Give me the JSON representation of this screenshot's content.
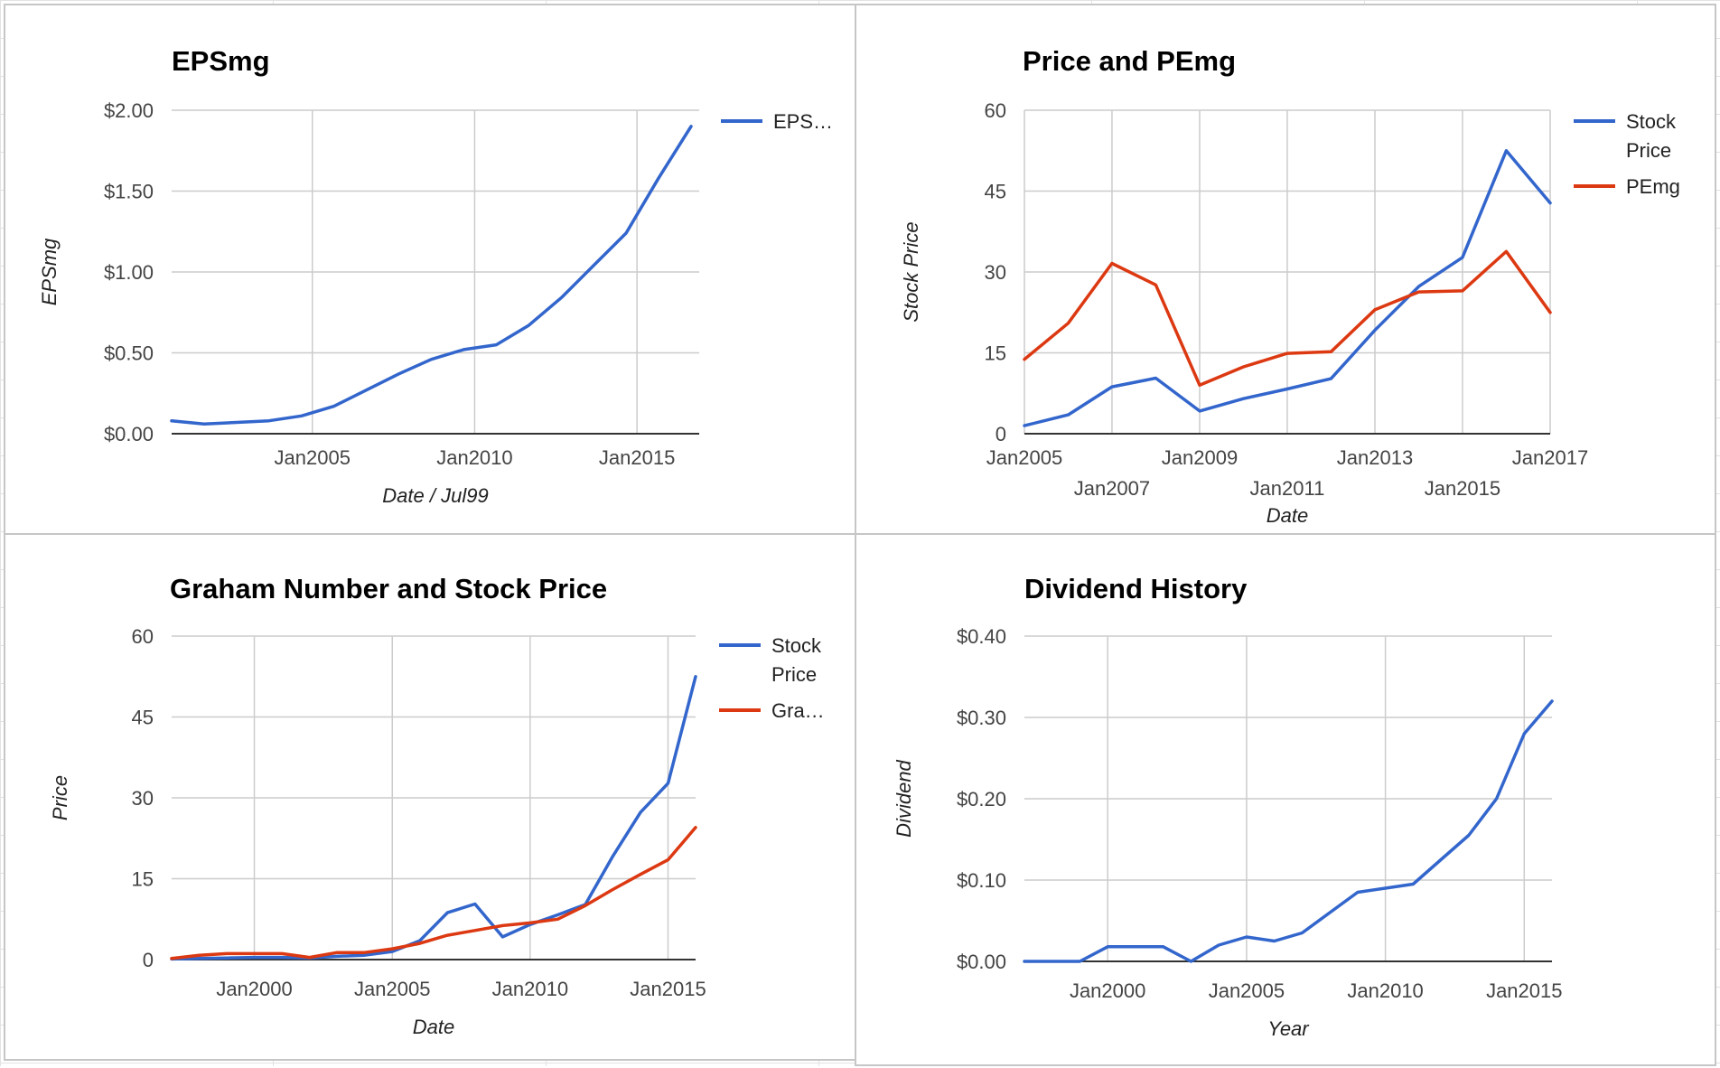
{
  "colors": {
    "blue": "#3366cc",
    "red": "#dc3912"
  },
  "chart_data": [
    {
      "type": "line",
      "title": "EPSmg",
      "xlabel": "Date / Jul99",
      "ylabel": "EPSmg",
      "xlim": [
        "2000-09-01",
        "2016-12-01"
      ],
      "ylim": [
        0,
        2
      ],
      "yticks": [
        0,
        0.5,
        1,
        1.5,
        2
      ],
      "ytick_labels": [
        "$0.00",
        "$0.50",
        "$1.00",
        "$1.50",
        "$2.00"
      ],
      "xticks": [
        "2005-01-01",
        "2010-01-01",
        "2015-01-01"
      ],
      "xtick_labels": [
        "Jan2005",
        "Jan2010",
        "Jan2015"
      ],
      "grid": true,
      "legend": "right",
      "series": [
        {
          "name": "EPS…",
          "color": "#3366cc",
          "points": [
            [
              "2000-09-01",
              0.08
            ],
            [
              "2001-09-01",
              0.06
            ],
            [
              "2002-09-01",
              0.07
            ],
            [
              "2003-09-01",
              0.08
            ],
            [
              "2004-09-01",
              0.11
            ],
            [
              "2005-09-01",
              0.17
            ],
            [
              "2006-09-01",
              0.27
            ],
            [
              "2007-09-01",
              0.37
            ],
            [
              "2008-09-01",
              0.46
            ],
            [
              "2009-09-01",
              0.52
            ],
            [
              "2010-09-01",
              0.55
            ],
            [
              "2011-09-01",
              0.67
            ],
            [
              "2012-09-01",
              0.84
            ],
            [
              "2013-09-01",
              1.04
            ],
            [
              "2014-09-01",
              1.24
            ],
            [
              "2015-09-01",
              1.58
            ],
            [
              "2016-09-01",
              1.9
            ]
          ]
        }
      ]
    },
    {
      "type": "line",
      "title": "Price and PEmg",
      "xlabel": "Date",
      "ylabel": "Stock Price",
      "xlim": [
        "2005-01-01",
        "2017-01-01"
      ],
      "ylim": [
        0,
        60
      ],
      "yticks": [
        0,
        15,
        30,
        45,
        60
      ],
      "ytick_labels": [
        "0",
        "15",
        "30",
        "45",
        "60"
      ],
      "xticks": [
        "2005-01-01",
        "2007-01-01",
        "2009-01-01",
        "2011-01-01",
        "2013-01-01",
        "2015-01-01",
        "2017-01-01"
      ],
      "xtick_labels": [
        "Jan2005",
        "Jan2007",
        "Jan2009",
        "Jan2011",
        "Jan2013",
        "Jan2015",
        "Jan2017"
      ],
      "grid": true,
      "legend": "right",
      "series": [
        {
          "name": "Stock Price",
          "color": "#3366cc",
          "points": [
            [
              "2005-01-01",
              1.5
            ],
            [
              "2006-01-01",
              3.5
            ],
            [
              "2007-01-01",
              8.7
            ],
            [
              "2008-01-01",
              10.3
            ],
            [
              "2009-01-01",
              4.2
            ],
            [
              "2010-01-01",
              6.5
            ],
            [
              "2011-01-01",
              8.3
            ],
            [
              "2012-01-01",
              10.2
            ],
            [
              "2013-01-01",
              19.2
            ],
            [
              "2014-01-01",
              27.3
            ],
            [
              "2015-01-01",
              32.7
            ],
            [
              "2016-01-01",
              52.5
            ],
            [
              "2017-01-01",
              42.8
            ]
          ]
        },
        {
          "name": "PEmg",
          "color": "#dc3912",
          "points": [
            [
              "2005-01-01",
              13.8
            ],
            [
              "2006-01-01",
              20.5
            ],
            [
              "2007-01-01",
              31.6
            ],
            [
              "2008-01-01",
              27.6
            ],
            [
              "2009-01-01",
              9.0
            ],
            [
              "2010-01-01",
              12.4
            ],
            [
              "2011-01-01",
              14.9
            ],
            [
              "2012-01-01",
              15.2
            ],
            [
              "2013-01-01",
              23.0
            ],
            [
              "2014-01-01",
              26.3
            ],
            [
              "2015-01-01",
              26.5
            ],
            [
              "2016-01-01",
              33.8
            ],
            [
              "2017-01-01",
              22.5
            ]
          ]
        }
      ]
    },
    {
      "type": "line",
      "title": "Graham Number and Stock Price",
      "xlabel": "Date",
      "ylabel": "Price",
      "xlim": [
        "1997-01-01",
        "2016-01-01"
      ],
      "ylim": [
        0,
        60
      ],
      "yticks": [
        0,
        15,
        30,
        45,
        60
      ],
      "ytick_labels": [
        "0",
        "15",
        "30",
        "45",
        "60"
      ],
      "xticks": [
        "2000-01-01",
        "2005-01-01",
        "2010-01-01",
        "2015-01-01"
      ],
      "xtick_labels": [
        "Jan2000",
        "Jan2005",
        "Jan2010",
        "Jan2015"
      ],
      "grid": true,
      "legend": "right",
      "series": [
        {
          "name": "Stock Price",
          "color": "#3366cc",
          "points": [
            [
              "1997-01-01",
              0.1
            ],
            [
              "1998-01-01",
              0.2
            ],
            [
              "1999-01-01",
              0.3
            ],
            [
              "2000-01-01",
              0.4
            ],
            [
              "2001-01-01",
              0.4
            ],
            [
              "2002-01-01",
              0.3
            ],
            [
              "2003-01-01",
              0.6
            ],
            [
              "2004-01-01",
              0.8
            ],
            [
              "2005-01-01",
              1.5
            ],
            [
              "2006-01-01",
              3.5
            ],
            [
              "2007-01-01",
              8.7
            ],
            [
              "2008-01-01",
              10.3
            ],
            [
              "2009-01-01",
              4.2
            ],
            [
              "2010-01-01",
              6.5
            ],
            [
              "2011-01-01",
              8.3
            ],
            [
              "2012-01-01",
              10.2
            ],
            [
              "2013-01-01",
              19.2
            ],
            [
              "2014-01-01",
              27.3
            ],
            [
              "2015-01-01",
              32.7
            ],
            [
              "2016-01-01",
              52.5
            ]
          ]
        },
        {
          "name": "Gra…",
          "color": "#dc3912",
          "points": [
            [
              "1997-01-01",
              0.2
            ],
            [
              "1998-01-01",
              0.8
            ],
            [
              "1999-01-01",
              1.1
            ],
            [
              "2000-01-01",
              1.1
            ],
            [
              "2001-01-01",
              1.1
            ],
            [
              "2002-01-01",
              0.4
            ],
            [
              "2003-01-01",
              1.3
            ],
            [
              "2004-01-01",
              1.3
            ],
            [
              "2005-01-01",
              2.0
            ],
            [
              "2006-01-01",
              3.0
            ],
            [
              "2007-01-01",
              4.5
            ],
            [
              "2008-01-01",
              5.4
            ],
            [
              "2009-01-01",
              6.3
            ],
            [
              "2010-01-01",
              6.8
            ],
            [
              "2011-01-01",
              7.5
            ],
            [
              "2012-01-01",
              10.0
            ],
            [
              "2013-01-01",
              13.0
            ],
            [
              "2014-01-01",
              15.8
            ],
            [
              "2015-01-01",
              18.5
            ],
            [
              "2016-01-01",
              24.5
            ]
          ]
        }
      ]
    },
    {
      "type": "line",
      "title": "Dividend History",
      "xlabel": "Year",
      "ylabel": "Dividend",
      "xlim": [
        "1997-01-01",
        "2016-01-01"
      ],
      "ylim": [
        0,
        0.4
      ],
      "yticks": [
        0,
        0.1,
        0.2,
        0.3,
        0.4
      ],
      "ytick_labels": [
        "$0.00",
        "$0.10",
        "$0.20",
        "$0.30",
        "$0.40"
      ],
      "xticks": [
        "2000-01-01",
        "2005-01-01",
        "2010-01-01",
        "2015-01-01"
      ],
      "xtick_labels": [
        "Jan2000",
        "Jan2005",
        "Jan2010",
        "Jan2015"
      ],
      "grid": true,
      "legend": "none",
      "series": [
        {
          "name": "",
          "color": "#3366cc",
          "points": [
            [
              "1997-01-01",
              0.0
            ],
            [
              "1998-01-01",
              0.0
            ],
            [
              "1999-01-01",
              0.0
            ],
            [
              "2000-01-01",
              0.018
            ],
            [
              "2001-01-01",
              0.018
            ],
            [
              "2002-01-01",
              0.018
            ],
            [
              "2003-01-01",
              0.0
            ],
            [
              "2004-01-01",
              0.02
            ],
            [
              "2005-01-01",
              0.03
            ],
            [
              "2006-01-01",
              0.025
            ],
            [
              "2007-01-01",
              0.035
            ],
            [
              "2008-01-01",
              0.06
            ],
            [
              "2009-01-01",
              0.085
            ],
            [
              "2010-01-01",
              0.09
            ],
            [
              "2011-01-01",
              0.095
            ],
            [
              "2012-01-01",
              0.125
            ],
            [
              "2013-01-01",
              0.155
            ],
            [
              "2014-01-01",
              0.2
            ],
            [
              "2015-01-01",
              0.28
            ],
            [
              "2016-01-01",
              0.32
            ]
          ]
        }
      ]
    }
  ]
}
